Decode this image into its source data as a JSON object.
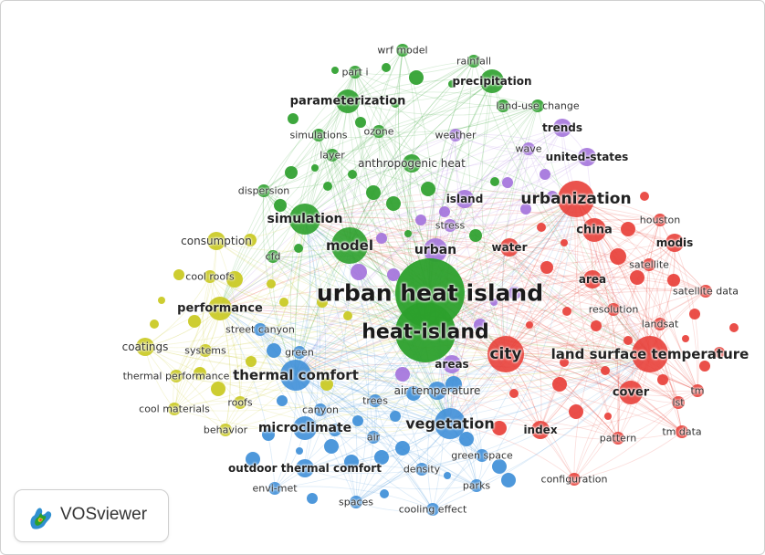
{
  "app": {
    "name": "VOSviewer"
  },
  "colors": {
    "green": "#2ca02c",
    "yellow": "#c9c91f",
    "red": "#e8403a",
    "blue": "#3f8fd8",
    "purple": "#a474dc"
  },
  "clusters": [
    {
      "id": "green",
      "color": "#2ca02c"
    },
    {
      "id": "yellow",
      "color": "#c9c91f"
    },
    {
      "id": "red",
      "color": "#e8403a"
    },
    {
      "id": "blue",
      "color": "#3f8fd8"
    },
    {
      "id": "purple",
      "color": "#a474dc"
    }
  ],
  "items": [
    {
      "label": "urban heat island",
      "cluster": "green",
      "weight": 10
    },
    {
      "label": "heat-island",
      "cluster": "green",
      "weight": 9
    },
    {
      "label": "model",
      "cluster": "green",
      "weight": 6
    },
    {
      "label": "simulation",
      "cluster": "green",
      "weight": 5
    },
    {
      "label": "parameterization",
      "cluster": "green",
      "weight": 4
    },
    {
      "label": "precipitation",
      "cluster": "green",
      "weight": 4
    },
    {
      "label": "anthropogenic heat",
      "cluster": "green",
      "weight": 3
    },
    {
      "label": "wrf model",
      "cluster": "green",
      "weight": 2
    },
    {
      "label": "rainfall",
      "cluster": "green",
      "weight": 2
    },
    {
      "label": "part i",
      "cluster": "green",
      "weight": 2
    },
    {
      "label": "land-use change",
      "cluster": "green",
      "weight": 2
    },
    {
      "label": "simulations",
      "cluster": "green",
      "weight": 2
    },
    {
      "label": "ozone",
      "cluster": "green",
      "weight": 2
    },
    {
      "label": "layer",
      "cluster": "green",
      "weight": 2
    },
    {
      "label": "dispersion",
      "cluster": "green",
      "weight": 2
    },
    {
      "label": "cfd",
      "cluster": "green",
      "weight": 2
    },
    {
      "label": "island",
      "cluster": "purple",
      "weight": 3
    },
    {
      "label": "urban",
      "cluster": "purple",
      "weight": 4
    },
    {
      "label": "stress",
      "cluster": "purple",
      "weight": 2
    },
    {
      "label": "weather",
      "cluster": "purple",
      "weight": 2
    },
    {
      "label": "trends",
      "cluster": "purple",
      "weight": 3
    },
    {
      "label": "united-states",
      "cluster": "purple",
      "weight": 3
    },
    {
      "label": "wave",
      "cluster": "purple",
      "weight": 2
    },
    {
      "label": "areas",
      "cluster": "purple",
      "weight": 3
    },
    {
      "label": "urbanization",
      "cluster": "red",
      "weight": 6
    },
    {
      "label": "china",
      "cluster": "red",
      "weight": 4
    },
    {
      "label": "water",
      "cluster": "red",
      "weight": 3
    },
    {
      "label": "houston",
      "cluster": "red",
      "weight": 2
    },
    {
      "label": "modis",
      "cluster": "red",
      "weight": 3
    },
    {
      "label": "satellite",
      "cluster": "red",
      "weight": 2
    },
    {
      "label": "area",
      "cluster": "red",
      "weight": 3
    },
    {
      "label": "satellite data",
      "cluster": "red",
      "weight": 2
    },
    {
      "label": "resolution",
      "cluster": "red",
      "weight": 2
    },
    {
      "label": "landsat",
      "cluster": "red",
      "weight": 2
    },
    {
      "label": "city",
      "cluster": "red",
      "weight": 6
    },
    {
      "label": "land surface temperature",
      "cluster": "red",
      "weight": 6
    },
    {
      "label": "cover",
      "cluster": "red",
      "weight": 4
    },
    {
      "label": "tm",
      "cluster": "red",
      "weight": 2
    },
    {
      "label": "lst",
      "cluster": "red",
      "weight": 2
    },
    {
      "label": "index",
      "cluster": "red",
      "weight": 3
    },
    {
      "label": "tm data",
      "cluster": "red",
      "weight": 2
    },
    {
      "label": "pattern",
      "cluster": "red",
      "weight": 2
    },
    {
      "label": "configuration",
      "cluster": "red",
      "weight": 2
    },
    {
      "label": "consumption",
      "cluster": "yellow",
      "weight": 3
    },
    {
      "label": "cool roofs",
      "cluster": "yellow",
      "weight": 2
    },
    {
      "label": "performance",
      "cluster": "yellow",
      "weight": 4
    },
    {
      "label": "coatings",
      "cluster": "yellow",
      "weight": 3
    },
    {
      "label": "systems",
      "cluster": "yellow",
      "weight": 2
    },
    {
      "label": "thermal performance",
      "cluster": "yellow",
      "weight": 2
    },
    {
      "label": "cool materials",
      "cluster": "yellow",
      "weight": 2
    },
    {
      "label": "roofs",
      "cluster": "yellow",
      "weight": 2
    },
    {
      "label": "behavior",
      "cluster": "yellow",
      "weight": 2
    },
    {
      "label": "thermal comfort",
      "cluster": "blue",
      "weight": 5
    },
    {
      "label": "street canyon",
      "cluster": "blue",
      "weight": 2
    },
    {
      "label": "green",
      "cluster": "blue",
      "weight": 2
    },
    {
      "label": "canyon",
      "cluster": "blue",
      "weight": 2
    },
    {
      "label": "trees",
      "cluster": "blue",
      "weight": 2
    },
    {
      "label": "air temperature",
      "cluster": "blue",
      "weight": 3
    },
    {
      "label": "microclimate",
      "cluster": "blue",
      "weight": 4
    },
    {
      "label": "air",
      "cluster": "blue",
      "weight": 2
    },
    {
      "label": "vegetation",
      "cluster": "blue",
      "weight": 5
    },
    {
      "label": "green space",
      "cluster": "blue",
      "weight": 2
    },
    {
      "label": "outdoor thermal comfort",
      "cluster": "blue",
      "weight": 3
    },
    {
      "label": "density",
      "cluster": "blue",
      "weight": 2
    },
    {
      "label": "parks",
      "cluster": "blue",
      "weight": 2
    },
    {
      "label": "envi-met",
      "cluster": "blue",
      "weight": 2
    },
    {
      "label": "spaces",
      "cluster": "blue",
      "weight": 2
    },
    {
      "label": "cooling effect",
      "cluster": "blue",
      "weight": 2
    }
  ]
}
